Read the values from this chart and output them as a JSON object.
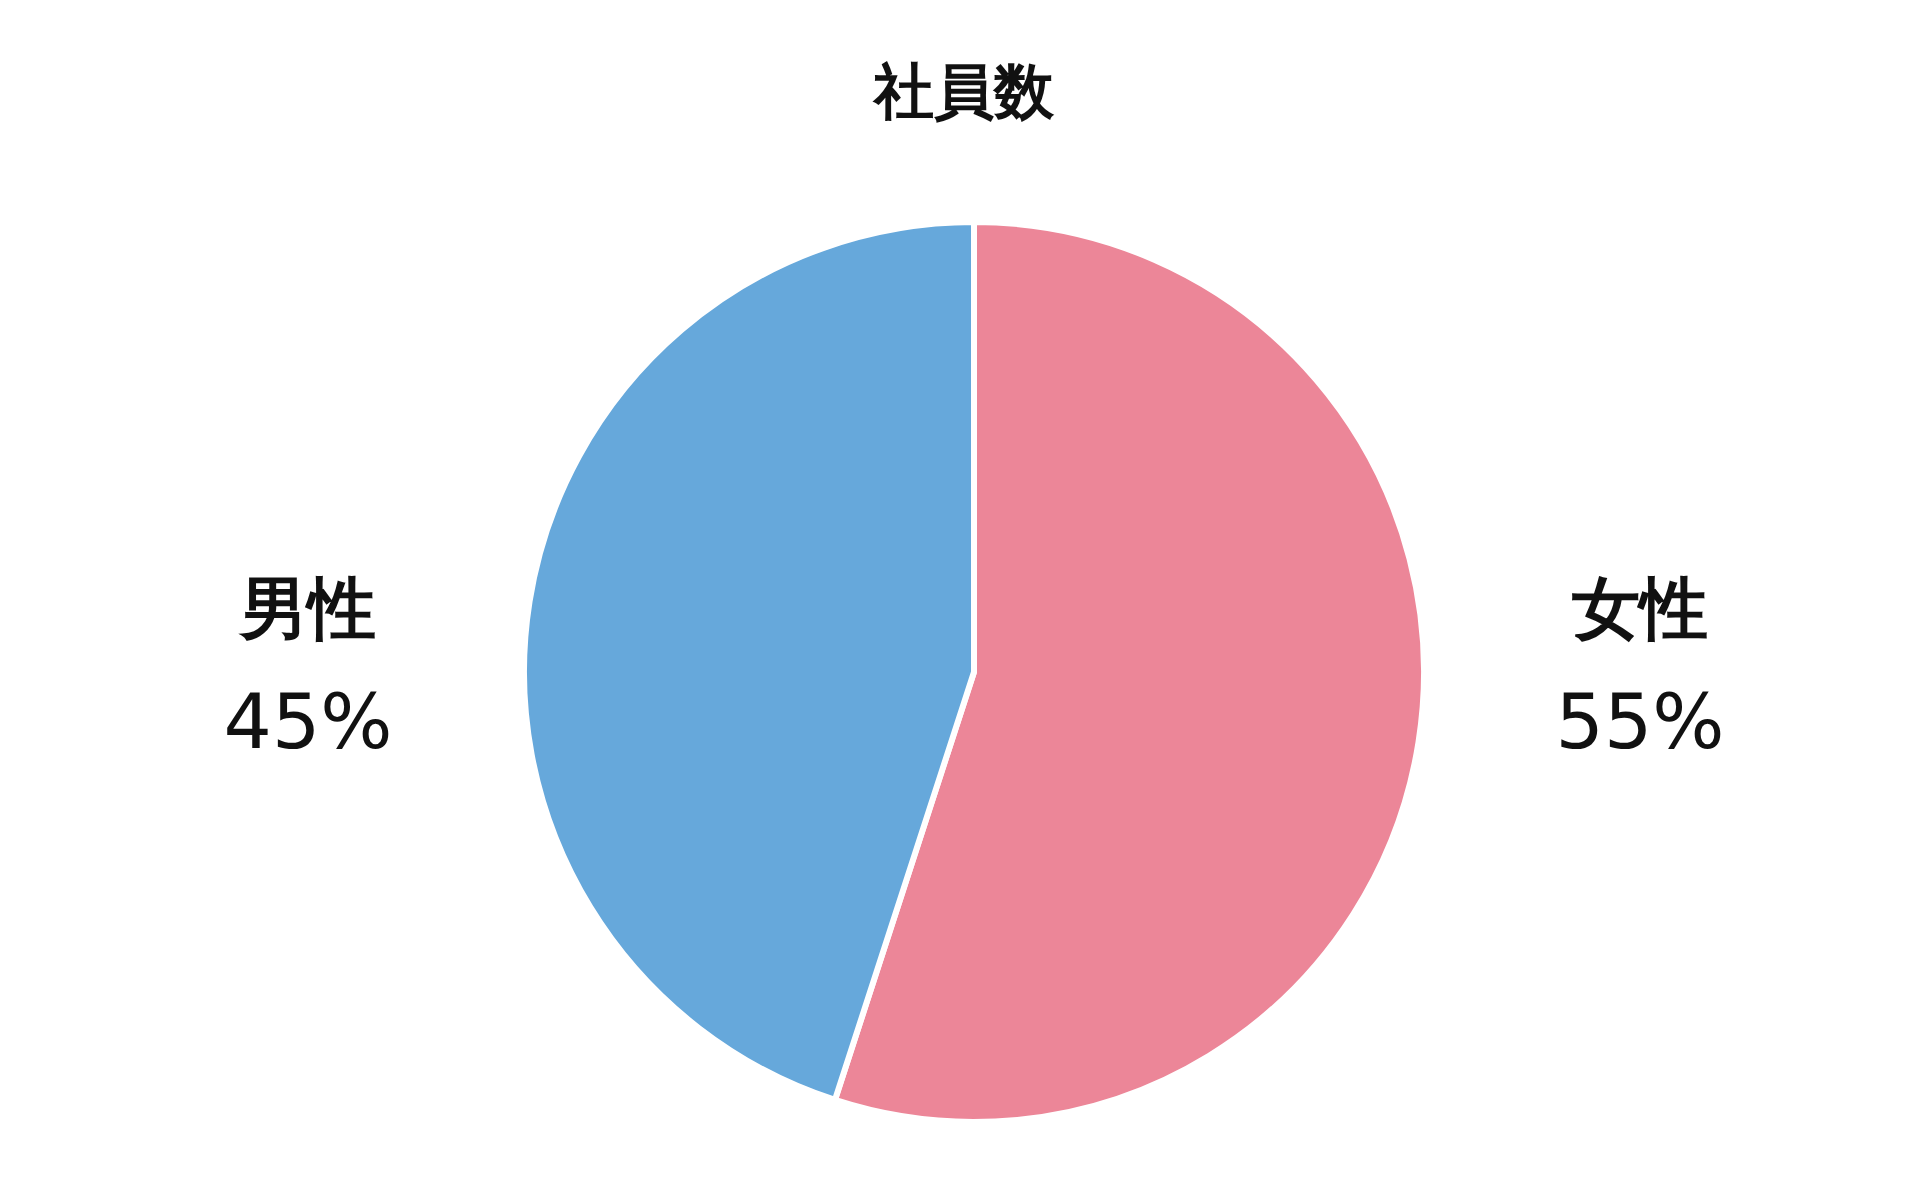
{
  "chart_data": {
    "type": "pie",
    "title": "社員数",
    "categories": [
      "女性",
      "男性"
    ],
    "values": [
      55,
      45
    ],
    "value_labels": [
      "55%",
      "45%"
    ],
    "colors": [
      "#ec8698",
      "#66a8db"
    ],
    "legend": false
  }
}
